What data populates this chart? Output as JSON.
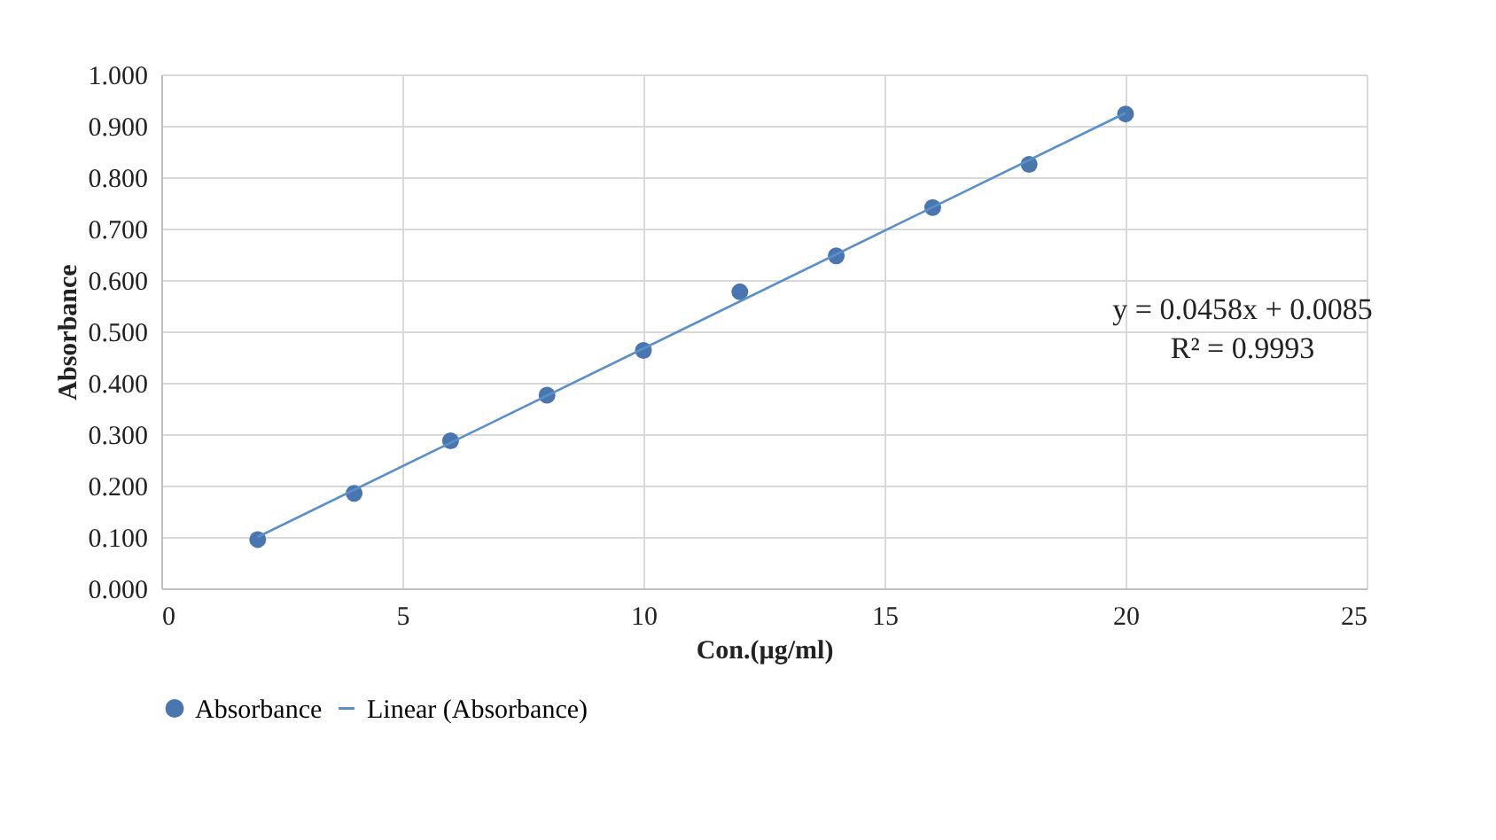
{
  "chart_data": {
    "type": "scatter",
    "xlabel": "Con.(µg/ml)",
    "ylabel": "Absorbance",
    "xlim": [
      0,
      25
    ],
    "xticks": [
      0,
      5,
      10,
      15,
      20,
      25
    ],
    "ylim": [
      0,
      1
    ],
    "yticks": [
      {
        "value": 0,
        "label": "0.000"
      },
      {
        "value": 0.1,
        "label": "0.100"
      },
      {
        "value": 0.2,
        "label": "0.200"
      },
      {
        "value": 0.3,
        "label": "0.300"
      },
      {
        "value": 0.4,
        "label": "0.400"
      },
      {
        "value": 0.5,
        "label": "0.500"
      },
      {
        "value": 0.6,
        "label": "0.600"
      },
      {
        "value": 0.7,
        "label": "0.700"
      },
      {
        "value": 0.8,
        "label": "0.800"
      },
      {
        "value": 0.9,
        "label": "0.900"
      },
      {
        "value": 1,
        "label": "1.000"
      }
    ],
    "x": [
      2,
      4,
      6,
      8,
      10,
      12,
      14,
      16,
      18,
      20
    ],
    "series": [
      {
        "name": "Absorbance",
        "type": "scatter",
        "marker": "circle",
        "color": "#4a76b0",
        "values": [
          0.095,
          0.185,
          0.287,
          0.376,
          0.463,
          0.577,
          0.647,
          0.741,
          0.825,
          0.923
        ]
      },
      {
        "name": "Linear (Absorbance)",
        "type": "line",
        "color": "#5b8fc9",
        "x": [
          2,
          20
        ],
        "values": [
          0.1,
          0.925
        ]
      }
    ],
    "annotations": [
      "y = 0.0458x + 0.0085",
      "R² = 0.9993"
    ],
    "grid": true,
    "legend": "bottom"
  }
}
